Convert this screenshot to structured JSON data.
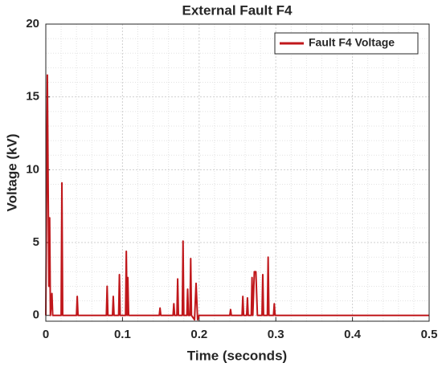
{
  "chart_data": {
    "type": "line",
    "title": "External Fault F4",
    "xlabel": "Time (seconds)",
    "ylabel": "Voltage (kV)",
    "x": [
      0,
      0.002,
      0.004,
      0.005,
      0.006,
      0.008,
      0.009,
      0.02,
      0.021,
      0.022,
      0.04,
      0.041,
      0.042,
      0.079,
      0.08,
      0.081,
      0.087,
      0.088,
      0.089,
      0.095,
      0.096,
      0.097,
      0.104,
      0.105,
      0.106,
      0.107,
      0.108,
      0.148,
      0.149,
      0.15,
      0.166,
      0.167,
      0.168,
      0.171,
      0.172,
      0.173,
      0.178,
      0.179,
      0.18,
      0.184,
      0.185,
      0.186,
      0.188,
      0.189,
      0.19,
      0.194,
      0.196,
      0.198,
      0.2,
      0.24,
      0.241,
      0.242,
      0.256,
      0.257,
      0.258,
      0.262,
      0.263,
      0.264,
      0.268,
      0.269,
      0.27,
      0.272,
      0.274,
      0.276,
      0.282,
      0.283,
      0.284,
      0.289,
      0.29,
      0.291,
      0.297,
      0.298,
      0.299,
      0.5
    ],
    "series": [
      {
        "name": "Fault F4 Voltage",
        "color": "#c0171b",
        "values": [
          0,
          16.5,
          2,
          6.7,
          0,
          1.5,
          0,
          0,
          9.1,
          0,
          0,
          1.3,
          0,
          0,
          2,
          0,
          0,
          1.3,
          0,
          0,
          2.8,
          0,
          0,
          4.4,
          0,
          2.6,
          0,
          0,
          0.5,
          0,
          0,
          0.8,
          0,
          0,
          2.5,
          0,
          0,
          5.1,
          0,
          0,
          1.8,
          0,
          0,
          3.9,
          0,
          -0.3,
          2.2,
          -0.3,
          0,
          0,
          0.4,
          0,
          0,
          1.3,
          0,
          0,
          1.2,
          0,
          0,
          2.6,
          0,
          3,
          3,
          0,
          0,
          2.8,
          0,
          0,
          4,
          0,
          0,
          0.8,
          0,
          0
        ]
      }
    ],
    "xlim": [
      0,
      0.5
    ],
    "ylim": [
      -0.4,
      20
    ],
    "xticks": [
      0,
      0.1,
      0.2,
      0.3,
      0.4,
      0.5
    ],
    "yticks": [
      0,
      5,
      10,
      15,
      20
    ],
    "grid": true,
    "minor_grid": true,
    "legend": "upper right"
  }
}
